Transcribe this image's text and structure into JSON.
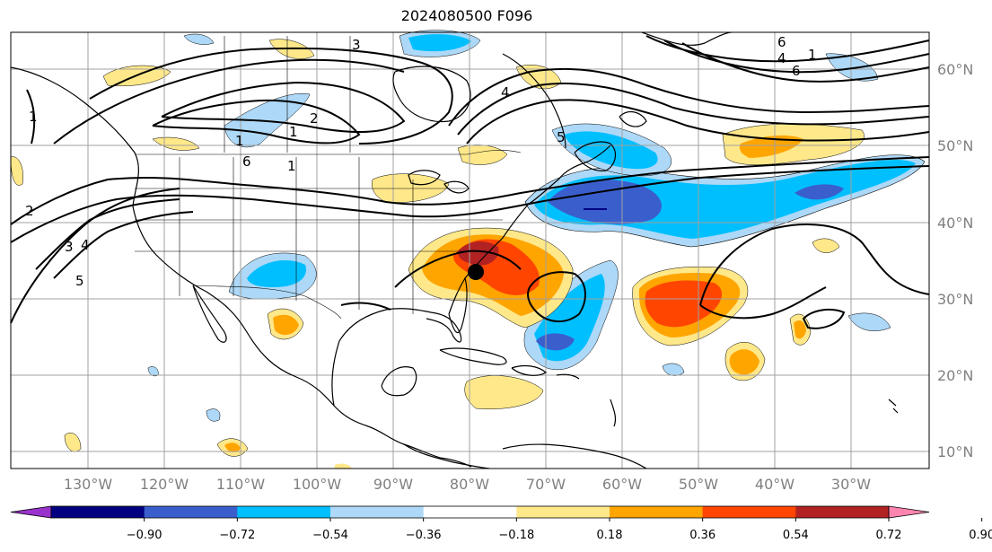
{
  "title": "2024080500 F096",
  "map": {
    "lon_ticks": [
      "130°W",
      "120°W",
      "110°W",
      "100°W",
      "90°W",
      "80°W",
      "70°W",
      "60°W",
      "50°W",
      "40°W",
      "30°W"
    ],
    "lat_ticks": [
      "60°N",
      "50°N",
      "40°N",
      "30°N",
      "20°N",
      "10°N"
    ],
    "contour_labels": [
      "1",
      "2",
      "3",
      "4",
      "5",
      "6",
      "1",
      "1",
      "1",
      "2",
      "3",
      "4",
      "5",
      "6",
      "1",
      "4",
      "6"
    ]
  },
  "colorbar": {
    "levels": [
      "−0.90",
      "−0.72",
      "−0.54",
      "−0.36",
      "−0.18",
      "0.18",
      "0.36",
      "0.54",
      "0.72",
      "0.90"
    ],
    "colors": [
      "#9932cc",
      "#000080",
      "#3a5fcd",
      "#00bfff",
      "#add8f7",
      "#ffffff",
      "#ffe88a",
      "#ffa500",
      "#ff4500",
      "#b22222",
      "#ff85b0"
    ]
  }
}
